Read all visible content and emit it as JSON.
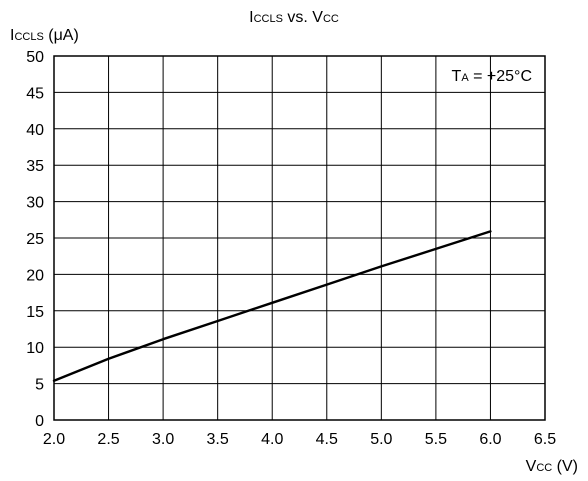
{
  "chart_data": {
    "type": "line",
    "title": {
      "main": "I",
      "sub": "CCLS",
      "mid": " vs. V",
      "tail": "CC"
    },
    "ylabel": {
      "main": "I",
      "sub": "CCLS",
      "unit": " (μA)"
    },
    "xlabel": {
      "main": "V",
      "sub": "CC",
      "unit": " (V)"
    },
    "annotation": {
      "main": "T",
      "sub": "A",
      "rest": " = +25°C"
    },
    "xlim": [
      2.0,
      6.5
    ],
    "ylim": [
      0,
      50
    ],
    "x_ticks": [
      "2.0",
      "2.5",
      "3.0",
      "3.5",
      "4.0",
      "4.5",
      "5.0",
      "5.5",
      "6.0",
      "6.5"
    ],
    "y_ticks": [
      "0",
      "5",
      "10",
      "15",
      "20",
      "25",
      "30",
      "35",
      "40",
      "45",
      "50"
    ],
    "grid": true,
    "series": [
      {
        "x": [
          2.0,
          2.5,
          3.0,
          3.5,
          4.0,
          4.5,
          5.0,
          5.5,
          6.0
        ],
        "y": [
          5.4,
          8.4,
          11.1,
          13.6,
          16.1,
          18.6,
          21.1,
          23.5,
          25.9
        ]
      }
    ]
  }
}
